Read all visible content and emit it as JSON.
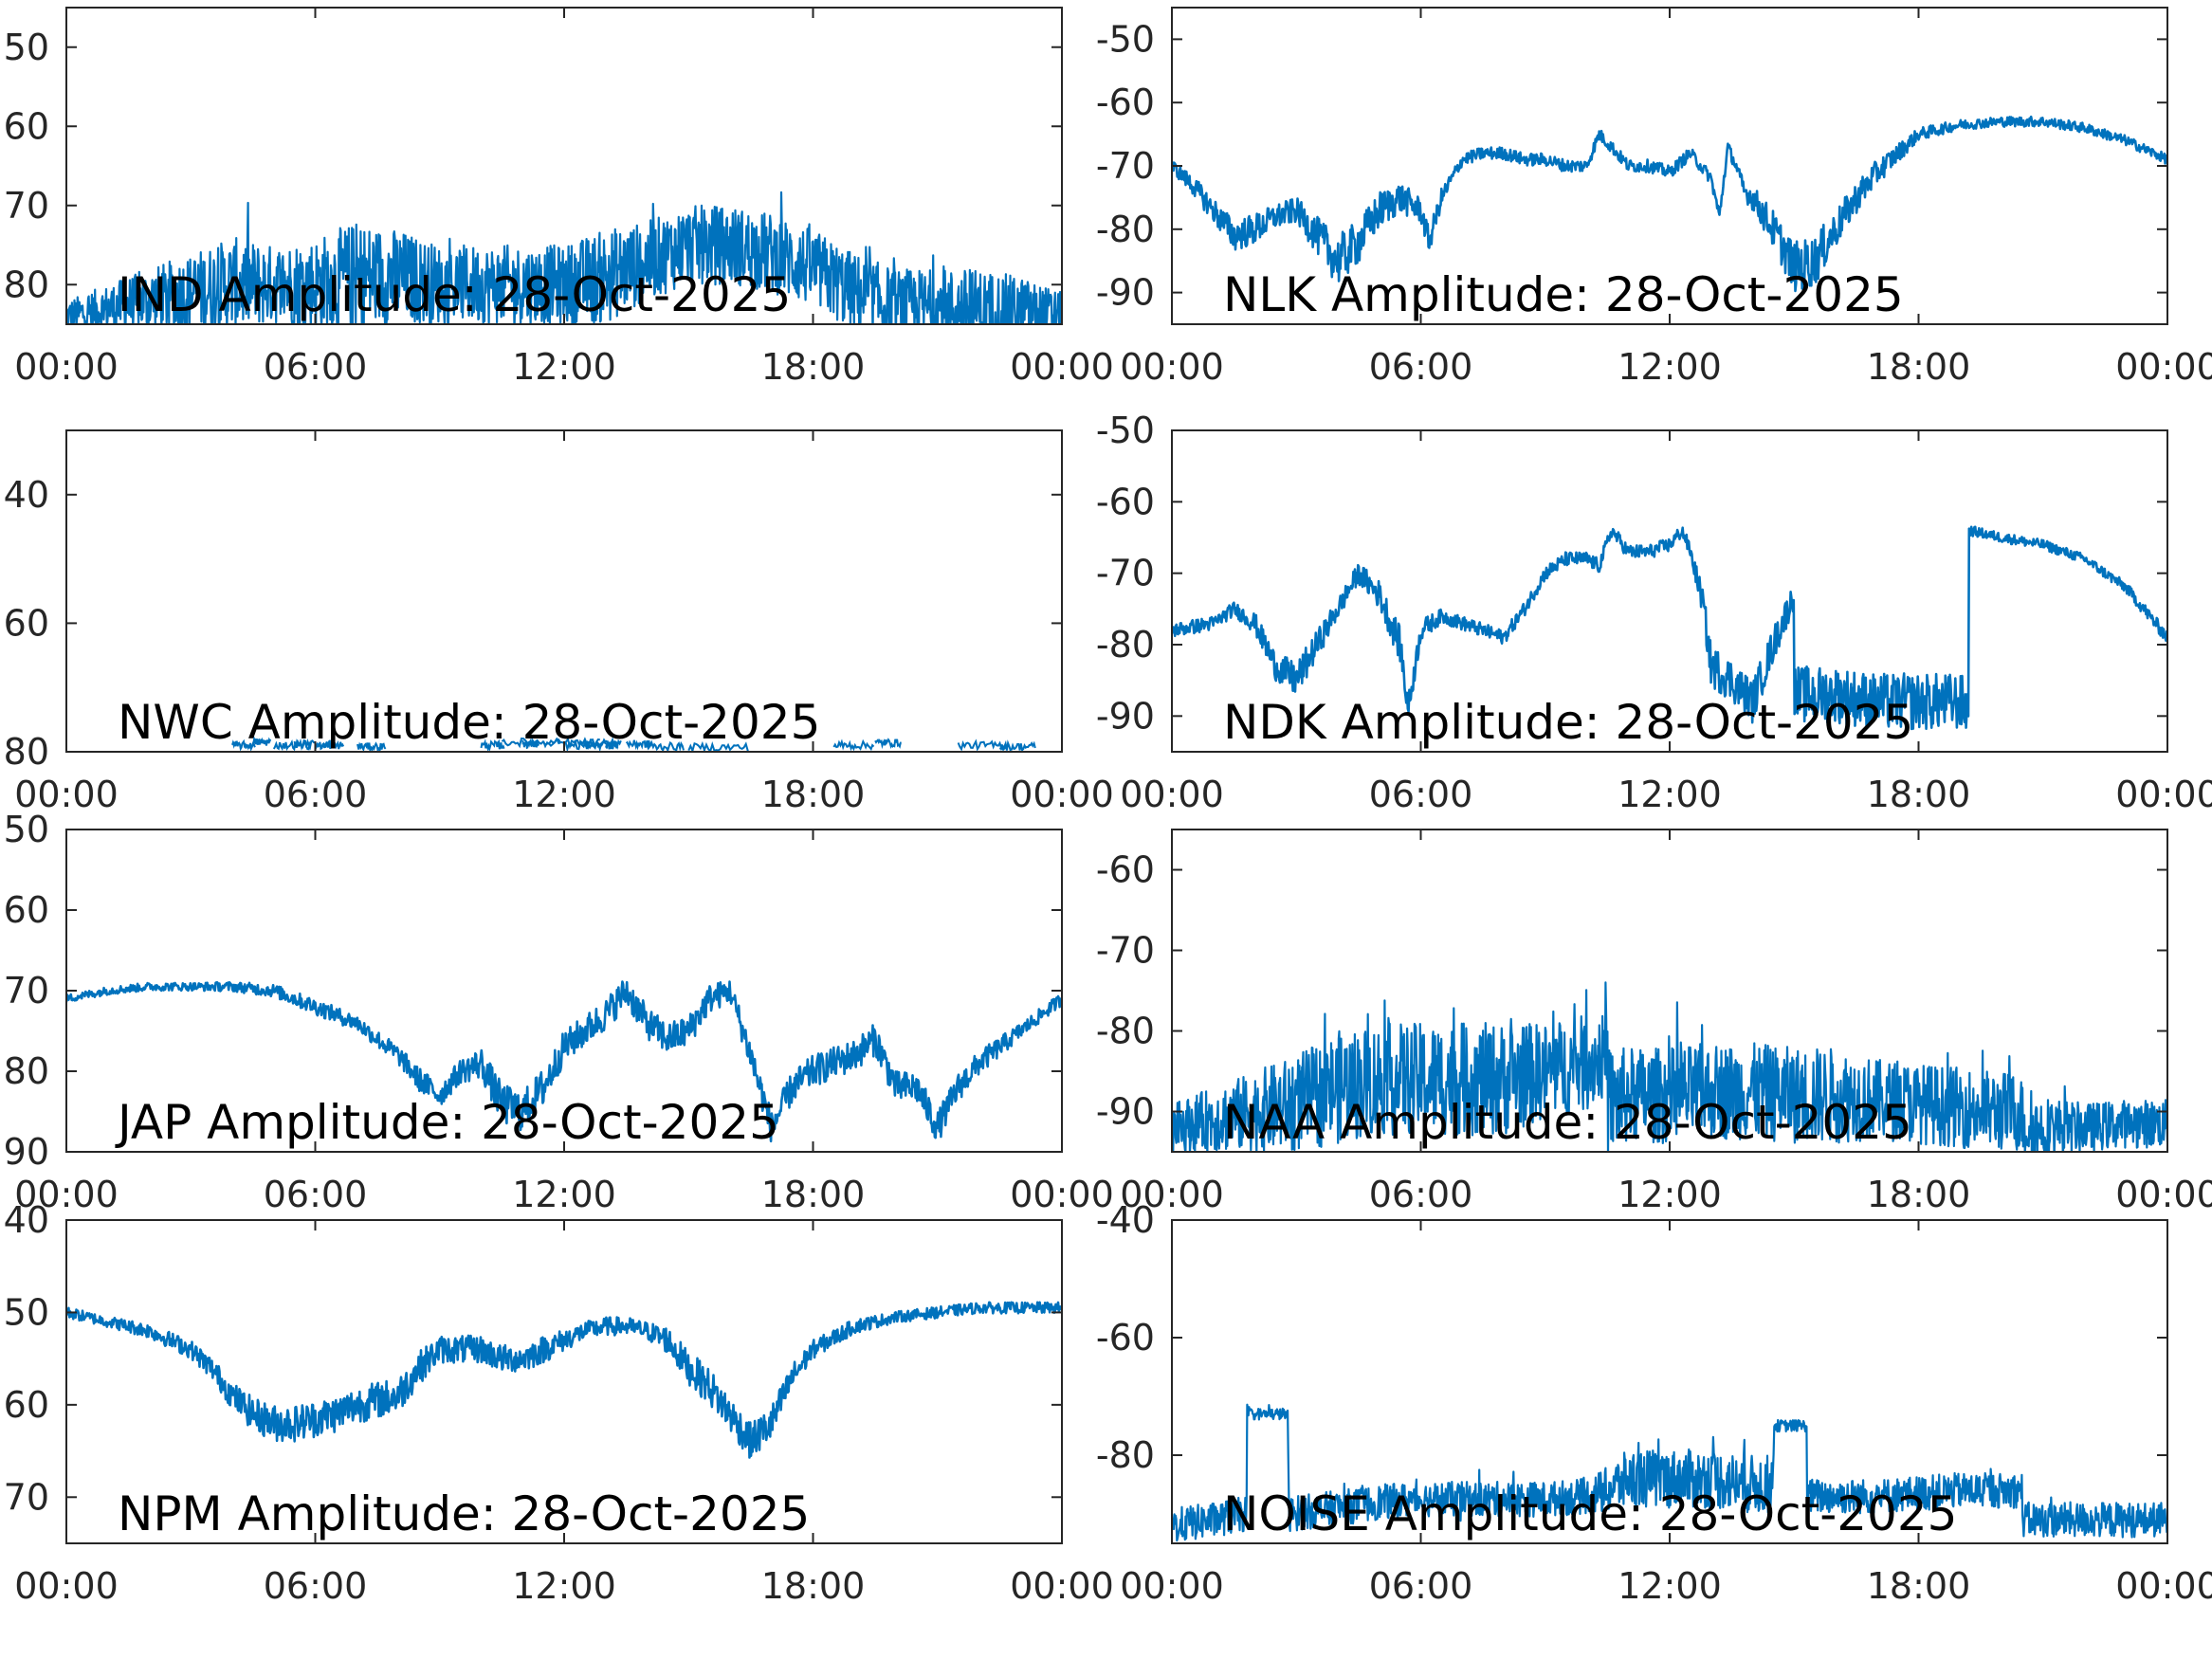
{
  "figure": {
    "line_color": "#0072BD",
    "axis_color": "#262626",
    "background": "#ffffff"
  },
  "chart_data": [
    {
      "type": "line",
      "title": "IND Amplitude: 28-Oct-2025",
      "xlim": [
        "00:00",
        "24:00"
      ],
      "xticks": [
        "00:00",
        "06:00",
        "12:00",
        "18:00",
        "00:00"
      ],
      "ylim": [
        -85,
        -45
      ],
      "yticks": [
        -50,
        -60,
        -70,
        -80
      ],
      "ytick_labels": [
        "50",
        "60",
        "70",
        "80"
      ],
      "style": "noisy",
      "series": [
        {
          "x": [
            0,
            1,
            2,
            3,
            4,
            5,
            6,
            7,
            8,
            9,
            10,
            11,
            12,
            13,
            14,
            15,
            16,
            17,
            18,
            19,
            20,
            21,
            22,
            23,
            24
          ],
          "y": [
            -84,
            -83,
            -82,
            -81,
            -80,
            -80,
            -80,
            -79,
            -79,
            -80,
            -80,
            -80,
            -80,
            -79,
            -77,
            -75,
            -75,
            -76,
            -78,
            -81,
            -83,
            -83,
            -83,
            -83,
            -84
          ],
          "spread": [
            2,
            3,
            4,
            5,
            6,
            5,
            6,
            7,
            6,
            5,
            5,
            5,
            5,
            6,
            5,
            5,
            5,
            5,
            5,
            5,
            5,
            5,
            5,
            4,
            3
          ]
        }
      ]
    },
    {
      "type": "line",
      "title": "NLK Amplitude: 28-Oct-2025",
      "xlim": [
        "00:00",
        "24:00"
      ],
      "xticks": [
        "00:00",
        "06:00",
        "12:00",
        "18:00",
        "00:00"
      ],
      "ylim": [
        -95,
        -45
      ],
      "yticks": [
        -50,
        -60,
        -70,
        -80,
        -90
      ],
      "ytick_labels": [
        "-50",
        "-60",
        "-70",
        "-80",
        "-90"
      ],
      "style": "band",
      "series": [
        {
          "x": [
            0,
            0.5,
            1,
            1.5,
            2,
            2.5,
            3,
            3.5,
            4,
            4.5,
            5,
            5.5,
            6,
            6.2,
            6.5,
            7,
            7.5,
            8,
            8.5,
            9,
            9.5,
            10,
            10.3,
            10.6,
            11,
            11.5,
            12,
            12.5,
            13,
            13.2,
            13.4,
            13.6,
            13.8,
            14,
            14.5,
            15,
            15.5,
            16,
            16.5,
            17,
            17.5,
            18,
            19,
            20,
            21,
            22,
            23,
            24
          ],
          "y": [
            -70,
            -73,
            -77,
            -81,
            -80,
            -78,
            -77,
            -81,
            -85,
            -82,
            -77,
            -75,
            -77,
            -82,
            -75,
            -69,
            -68,
            -68,
            -69,
            -69,
            -70,
            -70,
            -65,
            -67,
            -70,
            -70,
            -71,
            -68,
            -72,
            -78,
            -67,
            -70,
            -74,
            -75,
            -80,
            -86,
            -85,
            -80,
            -75,
            -71,
            -68,
            -65,
            -63.5,
            -63,
            -63,
            -64,
            -66,
            -69
          ],
          "spread": [
            1,
            1.5,
            2,
            2.5,
            2.5,
            2,
            2,
            3,
            4,
            3.5,
            3,
            2.5,
            2,
            2,
            1.5,
            1,
            1,
            1,
            1,
            1,
            1,
            1,
            1,
            1,
            1,
            1,
            1,
            1,
            1,
            1,
            1,
            1,
            1.5,
            2,
            3,
            4,
            4,
            3,
            2.5,
            2,
            1.5,
            1,
            0.8,
            0.8,
            0.8,
            0.8,
            0.8,
            0.8
          ]
        }
      ]
    },
    {
      "type": "line",
      "title": "NWC Amplitude: 28-Oct-2025",
      "xlim": [
        "00:00",
        "24:00"
      ],
      "xticks": [
        "00:00",
        "06:00",
        "12:00",
        "18:00",
        "00:00"
      ],
      "ylim": [
        -80,
        -30
      ],
      "yticks": [
        -40,
        -60,
        -80
      ],
      "ytick_labels": [
        "40",
        "60",
        "80"
      ],
      "style": "sparse",
      "series": [
        {
          "x": [
            4.0,
            4.5,
            5.0,
            5.5,
            6.0,
            7.0,
            10.0,
            10.5,
            11.0,
            11.5,
            12.0,
            12.5,
            13.0,
            13.5,
            14.0,
            15.0,
            18.5,
            19.5,
            21.5,
            22.5
          ],
          "y": [
            -79,
            -78.5,
            -79,
            -78.8,
            -79,
            -79.2,
            -79,
            -78.5,
            -78.8,
            -78.6,
            -79,
            -78.7,
            -79,
            -78.8,
            -79.2,
            -79.3,
            -79,
            -78.6,
            -79,
            -79.2
          ]
        }
      ]
    },
    {
      "type": "line",
      "title": "NDK Amplitude: 28-Oct-2025",
      "xlim": [
        "00:00",
        "24:00"
      ],
      "xticks": [
        "00:00",
        "06:00",
        "12:00",
        "18:00",
        "00:00"
      ],
      "ylim": [
        -95,
        -50
      ],
      "yticks": [
        -50,
        -60,
        -70,
        -80,
        -90
      ],
      "ytick_labels": [
        "-50",
        "-60",
        "-70",
        "-80",
        "-90"
      ],
      "style": "band",
      "series": [
        {
          "x": [
            0,
            1,
            1.5,
            2,
            2.5,
            3,
            3.5,
            4,
            4.5,
            5,
            5.5,
            5.7,
            6,
            6.5,
            7,
            7.5,
            8,
            8.5,
            9,
            9.5,
            10,
            10.3,
            10.6,
            11,
            11.5,
            12,
            12.3,
            12.5,
            12.8,
            13,
            13.5,
            14,
            14.5,
            15,
            15.01,
            16,
            17,
            18,
            19,
            19.2,
            19.21,
            20,
            21,
            22,
            23,
            24
          ],
          "y": [
            -78,
            -77,
            -75,
            -77,
            -83,
            -85,
            -80,
            -75,
            -70,
            -73,
            -80,
            -89,
            -78,
            -76,
            -77,
            -78,
            -79,
            -75,
            -70,
            -68,
            -68,
            -69,
            -64,
            -67,
            -67,
            -66,
            -64,
            -67,
            -74,
            -83,
            -85,
            -88,
            -80,
            -73,
            -87,
            -87,
            -88,
            -88,
            -88,
            -89,
            -64,
            -65,
            -66,
            -68,
            -72,
            -79
          ],
          "spread": [
            1,
            1,
            1,
            1.5,
            2,
            2.5,
            2,
            1.5,
            1.5,
            2,
            2.5,
            2,
            1.5,
            1,
            1,
            1,
            1,
            1,
            1,
            1,
            1,
            1,
            1,
            1,
            1,
            1,
            1,
            1,
            2,
            3,
            3,
            3,
            2.5,
            2,
            4,
            4,
            4,
            4,
            4,
            4,
            0.7,
            0.7,
            0.7,
            0.7,
            0.8,
            1
          ]
        }
      ]
    },
    {
      "type": "line",
      "title": "JAP Amplitude: 28-Oct-2025",
      "xlim": [
        "00:00",
        "24:00"
      ],
      "xticks": [
        "00:00",
        "06:00",
        "12:00",
        "18:00",
        "00:00"
      ],
      "ylim": [
        -90,
        -50
      ],
      "yticks": [
        -50,
        -60,
        -70,
        -80,
        -90
      ],
      "ytick_labels": [
        "50",
        "60",
        "70",
        "80",
        "90"
      ],
      "style": "band",
      "series": [
        {
          "x": [
            0,
            1,
            2,
            3,
            4,
            5,
            6,
            7,
            8,
            8.5,
            9,
            9.5,
            10,
            10.5,
            11,
            11.5,
            12,
            12.5,
            13,
            13.5,
            14,
            14.5,
            15,
            15.5,
            16,
            16.5,
            17,
            17.5,
            18,
            18.5,
            19,
            19.5,
            20,
            20.5,
            21,
            21.5,
            22,
            23,
            24
          ],
          "y": [
            -71,
            -70,
            -69.5,
            -69.5,
            -69.5,
            -70,
            -72,
            -74,
            -78,
            -81,
            -83,
            -80,
            -79,
            -84,
            -85,
            -82,
            -77,
            -75,
            -73,
            -70,
            -74,
            -76,
            -75,
            -71,
            -70,
            -78,
            -87,
            -82,
            -80,
            -79,
            -78,
            -76,
            -82,
            -82,
            -87,
            -82,
            -79,
            -75,
            -71
          ],
          "spread": [
            0.5,
            0.5,
            0.5,
            0.5,
            0.6,
            0.8,
            1,
            1,
            1.2,
            1.5,
            1.5,
            1.5,
            2,
            2.5,
            2.5,
            2.5,
            2,
            2,
            2,
            2,
            2,
            2,
            2,
            1.8,
            1.5,
            2,
            2,
            2,
            2,
            2,
            2,
            2,
            2,
            2,
            2,
            1.8,
            1.5,
            1,
            0.8
          ]
        }
      ]
    },
    {
      "type": "line",
      "title": "NAA Amplitude: 28-Oct-2025",
      "xlim": [
        "00:00",
        "24:00"
      ],
      "xticks": [
        "00:00",
        "06:00",
        "12:00",
        "18:00",
        "00:00"
      ],
      "ylim": [
        -95,
        -55
      ],
      "yticks": [
        -60,
        -70,
        -80,
        -90
      ],
      "ytick_labels": [
        "-60",
        "-70",
        "-80",
        "-90"
      ],
      "style": "noisy",
      "series": [
        {
          "x": [
            0,
            1,
            2,
            3,
            4,
            5,
            6,
            7,
            8,
            9,
            10,
            10.5,
            10.51,
            11,
            12,
            13,
            14,
            15,
            16,
            17,
            18,
            19,
            20,
            20.5,
            20.51,
            21,
            22,
            23,
            24
          ],
          "y": [
            -92,
            -91,
            -90,
            -89,
            -87,
            -86,
            -86,
            -86,
            -86,
            -85,
            -84,
            -83,
            -89,
            -88,
            -88,
            -87.5,
            -87.5,
            -88,
            -88,
            -88.5,
            -89,
            -89.5,
            -90,
            -90,
            -92,
            -92,
            -92,
            -91.5,
            -91.5
          ],
          "spread": [
            3,
            4,
            5,
            6,
            7,
            7,
            7,
            7,
            7,
            6,
            6,
            5,
            7,
            6,
            6,
            6,
            6,
            6,
            6,
            5,
            5,
            5,
            5,
            5,
            4,
            4,
            3,
            3,
            3
          ]
        }
      ]
    },
    {
      "type": "line",
      "title": "NPM Amplitude: 28-Oct-2025",
      "xlim": [
        "00:00",
        "24:00"
      ],
      "xticks": [
        "00:00",
        "06:00",
        "12:00",
        "18:00",
        "00:00"
      ],
      "ylim": [
        -75,
        -40
      ],
      "yticks": [
        -40,
        -50,
        -60,
        -70
      ],
      "ytick_labels": [
        "40",
        "50",
        "60",
        "70"
      ],
      "style": "band",
      "series": [
        {
          "x": [
            0,
            1,
            2,
            3,
            3.5,
            4,
            4.5,
            5,
            5.5,
            6,
            6.5,
            7,
            7.5,
            8,
            8.5,
            9,
            9.5,
            10,
            10.5,
            11,
            11.5,
            12,
            12.5,
            13,
            13.5,
            14,
            14.5,
            15,
            15.5,
            16,
            16.5,
            17,
            17.5,
            18,
            19,
            20,
            21,
            22,
            23,
            24
          ],
          "y": [
            -50,
            -51,
            -52,
            -54,
            -56,
            -59,
            -61,
            -62,
            -62,
            -61.5,
            -61,
            -60,
            -59.5,
            -59,
            -56,
            -54,
            -54,
            -54,
            -55,
            -55,
            -54,
            -53,
            -52,
            -51.5,
            -51.5,
            -52,
            -53,
            -56,
            -58,
            -61,
            -64,
            -62,
            -57,
            -54,
            -51.5,
            -50.5,
            -50,
            -49.5,
            -49.5,
            -49.5
          ],
          "spread": [
            0.6,
            0.6,
            0.8,
            1,
            1.2,
            1.5,
            1.8,
            2,
            2,
            2,
            2,
            2,
            2,
            2,
            1.8,
            1.5,
            1.5,
            1.5,
            1.5,
            1.5,
            1.5,
            1.2,
            1,
            1,
            1,
            1,
            1.5,
            1.8,
            2,
            2,
            2,
            2,
            1.5,
            1,
            0.8,
            0.6,
            0.6,
            0.6,
            0.6,
            0.6
          ]
        }
      ]
    },
    {
      "type": "line",
      "title": "NOISE Amplitude: 28-Oct-2025",
      "xlim": [
        "00:00",
        "24:00"
      ],
      "xticks": [
        "00:00",
        "06:00",
        "12:00",
        "18:00",
        "00:00"
      ],
      "ylim": [
        -95,
        -40
      ],
      "yticks": [
        -40,
        -60,
        -80
      ],
      "ytick_labels": [
        "-40",
        "-60",
        "-80"
      ],
      "style": "noisy",
      "series": [
        {
          "x": [
            0,
            1,
            1.8,
            1.81,
            2.8,
            2.81,
            4,
            5,
            6,
            7,
            8,
            9,
            10,
            10.5,
            11,
            12,
            13,
            14,
            14.5,
            14.51,
            15.3,
            15.31,
            16,
            17,
            18,
            19,
            20,
            20.5,
            20.51,
            21,
            22,
            23,
            24
          ],
          "y": [
            -92,
            -91,
            -90,
            -73,
            -73,
            -90,
            -89,
            -88,
            -87.5,
            -87.5,
            -87.5,
            -87.5,
            -87,
            -86,
            -84,
            -84,
            -84,
            -85,
            -85,
            -75,
            -75,
            -87,
            -87,
            -87,
            -86.5,
            -86,
            -86,
            -86,
            -91,
            -91,
            -91,
            -91,
            -91
          ],
          "spread": [
            3,
            3,
            3,
            1,
            1,
            3,
            3,
            3,
            3,
            3,
            3,
            3,
            3,
            4,
            5,
            5,
            5,
            5,
            5,
            1,
            1,
            3,
            3,
            3,
            3,
            3,
            3,
            3,
            3,
            3,
            3,
            3,
            3
          ]
        }
      ]
    }
  ]
}
